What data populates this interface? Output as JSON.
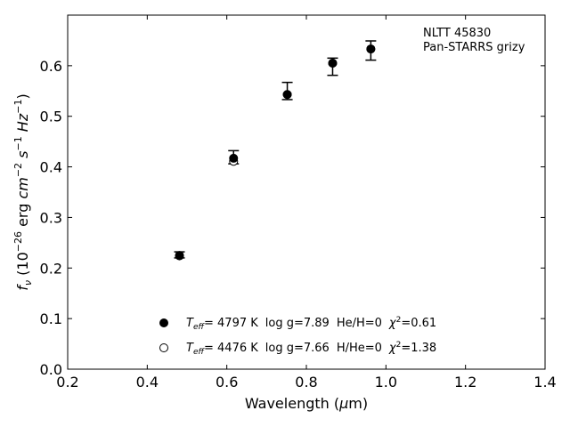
{
  "chart_data": {
    "type": "scatter",
    "title": "",
    "annotation_lines": [
      "NLTT 45830",
      "Pan-STARRS grizy"
    ],
    "xlabel": "Wavelength (μm)",
    "ylabel": "f_ν (10^-26 erg cm^-2 s^-1 Hz^-1)",
    "xlim": [
      0.2,
      1.4
    ],
    "ylim": [
      0.0,
      0.7
    ],
    "xticks": [
      0.2,
      0.4,
      0.6,
      0.8,
      1.0,
      1.2,
      1.4
    ],
    "yticks": [
      0.0,
      0.1,
      0.2,
      0.3,
      0.4,
      0.5,
      0.6
    ],
    "grid": false,
    "legend_position": "bottom-center",
    "observed": {
      "x": [
        0.481,
        0.617,
        0.752,
        0.866,
        0.962
      ],
      "y": [
        0.226,
        0.419,
        0.55,
        0.598,
        0.63
      ],
      "err": [
        0.006,
        0.013,
        0.017,
        0.017,
        0.019
      ]
    },
    "series": [
      {
        "name": "fit-1",
        "marker": "filled-circle",
        "teff": "4797 K",
        "logg": "7.89",
        "comp_label": "He/H=0",
        "chi2": "0.61",
        "x": [
          0.481,
          0.617,
          0.752,
          0.866,
          0.962
        ],
        "y": [
          0.225,
          0.417,
          0.543,
          0.605,
          0.633
        ]
      },
      {
        "name": "fit-2",
        "marker": "open-circle",
        "teff": "4476 K",
        "logg": "7.66",
        "comp_label": "H/He=0",
        "chi2": "1.38",
        "x": [
          0.481,
          0.617,
          0.752,
          0.866,
          0.962
        ],
        "y": [
          0.224,
          0.411,
          0.543,
          0.605,
          0.633
        ]
      }
    ],
    "legend_entries": [
      {
        "teff_label": "= 4797 K",
        "logg_label": "log g=7.89",
        "comp": "He/H=0",
        "chi": "=0.61"
      },
      {
        "teff_label": "= 4476 K",
        "logg_label": "log g=7.66",
        "comp": "H/He=0",
        "chi": "=1.38"
      }
    ]
  }
}
